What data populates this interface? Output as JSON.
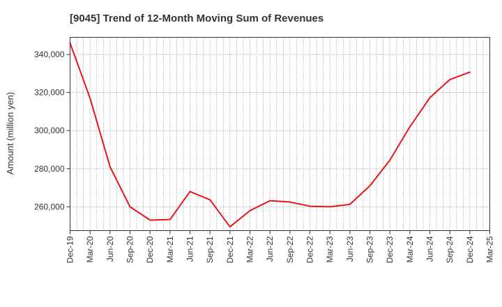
{
  "chart_data": {
    "type": "line",
    "title": "[9045]  Trend of 12-Month Moving Sum of Revenues",
    "xlabel": "",
    "ylabel": "Amount (million yen)",
    "ylim": [
      247500,
      349000
    ],
    "y_ticks": [
      260000,
      280000,
      300000,
      320000,
      340000
    ],
    "y_tick_labels": [
      "260,000",
      "280,000",
      "300,000",
      "320,000",
      "340,000"
    ],
    "x_ticks": [
      "Dec-19",
      "Mar-20",
      "Jun-20",
      "Sep-20",
      "Dec-20",
      "Mar-21",
      "Jun-21",
      "Sep-21",
      "Dec-21",
      "Mar-22",
      "Jun-22",
      "Sep-22",
      "Dec-22",
      "Mar-23",
      "Jun-23",
      "Sep-23",
      "Dec-23",
      "Mar-24",
      "Jun-24",
      "Sep-24",
      "Dec-24",
      "Mar-25"
    ],
    "grid": true,
    "series": [
      {
        "name": "",
        "color": "#e8141b",
        "x": [
          "Dec-19",
          "Mar-20",
          "Jun-20",
          "Sep-20",
          "Dec-20",
          "Mar-21",
          "Jun-21",
          "Sep-21",
          "Dec-21",
          "Mar-22",
          "Jun-22",
          "Sep-22",
          "Dec-22",
          "Mar-23",
          "Jun-23",
          "Sep-23",
          "Dec-23",
          "Mar-24",
          "Jun-24",
          "Sep-24",
          "Dec-24"
        ],
        "values": [
          346000,
          317000,
          281000,
          260000,
          253000,
          253300,
          268000,
          263700,
          249500,
          258000,
          263200,
          262500,
          260300,
          260000,
          261300,
          271000,
          284500,
          302000,
          317300,
          326800,
          330700
        ]
      }
    ]
  }
}
